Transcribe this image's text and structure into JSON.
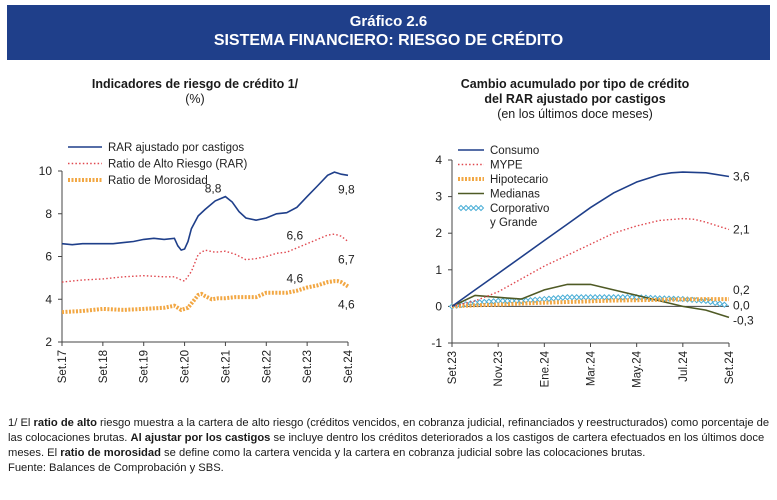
{
  "header": {
    "line1": "Gráfico 2.6",
    "line2": "SISTEMA FINANCIERO: RIESGO DE CRÉDITO"
  },
  "chart_data": [
    {
      "type": "line",
      "title": "Indicadores de riesgo de crédito 1/",
      "subtitle": "(%)",
      "ylim": [
        2,
        10
      ],
      "yticks": [
        2,
        4,
        6,
        8,
        10
      ],
      "xticks": [
        "Set.17",
        "Set.18",
        "Set.19",
        "Set.20",
        "Set.21",
        "Set.22",
        "Set.23",
        "Set.24"
      ],
      "x_range": [
        0,
        84
      ],
      "legend_position": "top-left",
      "series": [
        {
          "name": "RAR ajustado por castigos",
          "color": "#1f3f8a",
          "style": "solid",
          "x": [
            0,
            3,
            6,
            9,
            12,
            15,
            18,
            21,
            24,
            27,
            30,
            33,
            34,
            35,
            36,
            37,
            38,
            40,
            42,
            45,
            48,
            50,
            52,
            54,
            57,
            60,
            63,
            66,
            69,
            72,
            75,
            78,
            80,
            81,
            82,
            84
          ],
          "y": [
            6.6,
            6.55,
            6.6,
            6.6,
            6.6,
            6.6,
            6.65,
            6.7,
            6.8,
            6.85,
            6.8,
            6.85,
            6.5,
            6.3,
            6.35,
            6.7,
            7.3,
            7.9,
            8.2,
            8.6,
            8.8,
            8.55,
            8.1,
            7.8,
            7.7,
            7.8,
            8.0,
            8.05,
            8.3,
            8.8,
            9.3,
            9.8,
            9.95,
            9.9,
            9.85,
            9.8
          ]
        },
        {
          "name": "Ratio de Alto Riesgo (RAR)",
          "color": "#e0484f",
          "style": "dotted",
          "x": [
            0,
            6,
            12,
            18,
            24,
            30,
            33,
            35,
            36,
            38,
            40,
            42,
            45,
            48,
            51,
            54,
            57,
            60,
            63,
            66,
            69,
            72,
            75,
            78,
            80,
            81,
            82,
            84
          ],
          "y": [
            4.8,
            4.9,
            4.95,
            5.05,
            5.1,
            5.05,
            5.05,
            4.9,
            4.85,
            5.3,
            6.1,
            6.3,
            6.2,
            6.25,
            6.1,
            5.85,
            5.9,
            6.0,
            6.15,
            6.2,
            6.4,
            6.6,
            6.8,
            7.0,
            7.05,
            7.0,
            6.95,
            6.7
          ]
        },
        {
          "name": "Ratio de Morosidad",
          "color": "#f2a743",
          "style": "thick-dotted",
          "x": [
            0,
            6,
            12,
            18,
            24,
            30,
            33,
            35,
            37,
            39,
            40,
            41,
            42,
            44,
            46,
            48,
            51,
            54,
            57,
            60,
            63,
            66,
            69,
            72,
            75,
            78,
            80,
            81,
            82,
            84
          ],
          "y": [
            3.4,
            3.45,
            3.55,
            3.5,
            3.55,
            3.6,
            3.7,
            3.5,
            3.6,
            4.0,
            4.2,
            4.25,
            4.15,
            4.0,
            4.05,
            4.05,
            4.1,
            4.1,
            4.1,
            4.3,
            4.3,
            4.3,
            4.4,
            4.55,
            4.65,
            4.8,
            4.85,
            4.85,
            4.8,
            4.6
          ]
        }
      ],
      "annotations": [
        {
          "text": "8,8",
          "x": 48,
          "y": 8.8
        },
        {
          "text": "9,8",
          "x": 84,
          "y": 9.8
        },
        {
          "text": "6,6",
          "x": 72,
          "y": 6.6
        },
        {
          "text": "6,7",
          "x": 84,
          "y": 6.7
        },
        {
          "text": "4,6",
          "x": 72,
          "y": 4.6
        },
        {
          "text": "4,6",
          "x": 84,
          "y": 4.6
        }
      ]
    },
    {
      "type": "line",
      "title": "Cambio acumulado por tipo de crédito",
      "title2": "del RAR ajustado por castigos",
      "subtitle": "(en los últimos doce meses)",
      "ylim": [
        -1,
        4
      ],
      "yticks": [
        -1,
        0,
        1,
        2,
        3,
        4
      ],
      "xticks": [
        "Set.23",
        "Nov.23",
        "Ene.24",
        "Mar.24",
        "May.24",
        "Jul.24",
        "Set.24"
      ],
      "x_range": [
        0,
        12
      ],
      "legend_position": "top-left",
      "series": [
        {
          "name": "Consumo",
          "color": "#1f3f8a",
          "style": "solid",
          "x": [
            0,
            1,
            2,
            3,
            4,
            5,
            6,
            7,
            8,
            9,
            9.5,
            10,
            11,
            12
          ],
          "y": [
            0,
            0.45,
            0.9,
            1.35,
            1.8,
            2.25,
            2.7,
            3.1,
            3.4,
            3.6,
            3.65,
            3.67,
            3.65,
            3.55
          ]
        },
        {
          "name": "MYPE",
          "color": "#e0484f",
          "style": "dotted",
          "x": [
            0,
            1,
            2,
            3,
            4,
            5,
            6,
            7,
            8,
            9,
            10,
            10.5,
            11,
            12
          ],
          "y": [
            0,
            0.15,
            0.4,
            0.75,
            1.1,
            1.4,
            1.7,
            2.0,
            2.2,
            2.35,
            2.4,
            2.38,
            2.3,
            2.1
          ]
        },
        {
          "name": "Hipotecario",
          "color": "#f2a743",
          "style": "thick-dotted",
          "x": [
            0,
            1,
            2,
            3,
            4,
            5,
            6,
            7,
            8,
            9,
            10,
            11,
            12
          ],
          "y": [
            0,
            0.03,
            0.05,
            0.08,
            0.1,
            0.12,
            0.14,
            0.16,
            0.17,
            0.18,
            0.19,
            0.2,
            0.2
          ]
        },
        {
          "name": "Medianas",
          "color": "#4f5a25",
          "style": "solid",
          "x": [
            0,
            1,
            2,
            3,
            4,
            5,
            6,
            7,
            8,
            9,
            10,
            11,
            12
          ],
          "y": [
            0,
            0.3,
            0.25,
            0.2,
            0.45,
            0.6,
            0.6,
            0.45,
            0.3,
            0.15,
            0,
            -0.1,
            -0.3
          ]
        },
        {
          "name": "Corporativo\ny Grande",
          "color": "#4aaed6",
          "style": "diamonds",
          "x": [
            0,
            1,
            2,
            3,
            4,
            5,
            6,
            7,
            8,
            9,
            10,
            11,
            12
          ],
          "y": [
            0,
            0.1,
            0.15,
            0.15,
            0.2,
            0.25,
            0.25,
            0.25,
            0.25,
            0.22,
            0.2,
            0.15,
            0.02
          ]
        }
      ],
      "annotations": [
        {
          "text": "3,6",
          "x": 12,
          "y": 3.55
        },
        {
          "text": "2,1",
          "x": 12,
          "y": 2.1
        },
        {
          "text": "0,2",
          "x": 12,
          "y": 0.45
        },
        {
          "text": "0,0",
          "x": 12,
          "y": 0.02
        },
        {
          "text": "-0,3",
          "x": 12,
          "y": -0.38
        }
      ]
    }
  ],
  "notes": {
    "p1": "1/ El ",
    "b1": "ratio de alto",
    "p2": " riesgo muestra a la cartera de alto riesgo (créditos vencidos, en cobranza judicial, refinanciados y reestructurados) como porcentaje de las colocaciones brutas. ",
    "b2": "Al ajustar por los castigos",
    "p3": " se incluye dentro los créditos deteriorados a los castigos de cartera efectuados en los últimos doce meses. El ",
    "b3": "ratio de morosidad",
    "p4": " se define como la cartera vencida y la cartera en cobranza judicial sobre las colocaciones brutas.",
    "source": "Fuente: Balances de Comprobación y SBS."
  }
}
